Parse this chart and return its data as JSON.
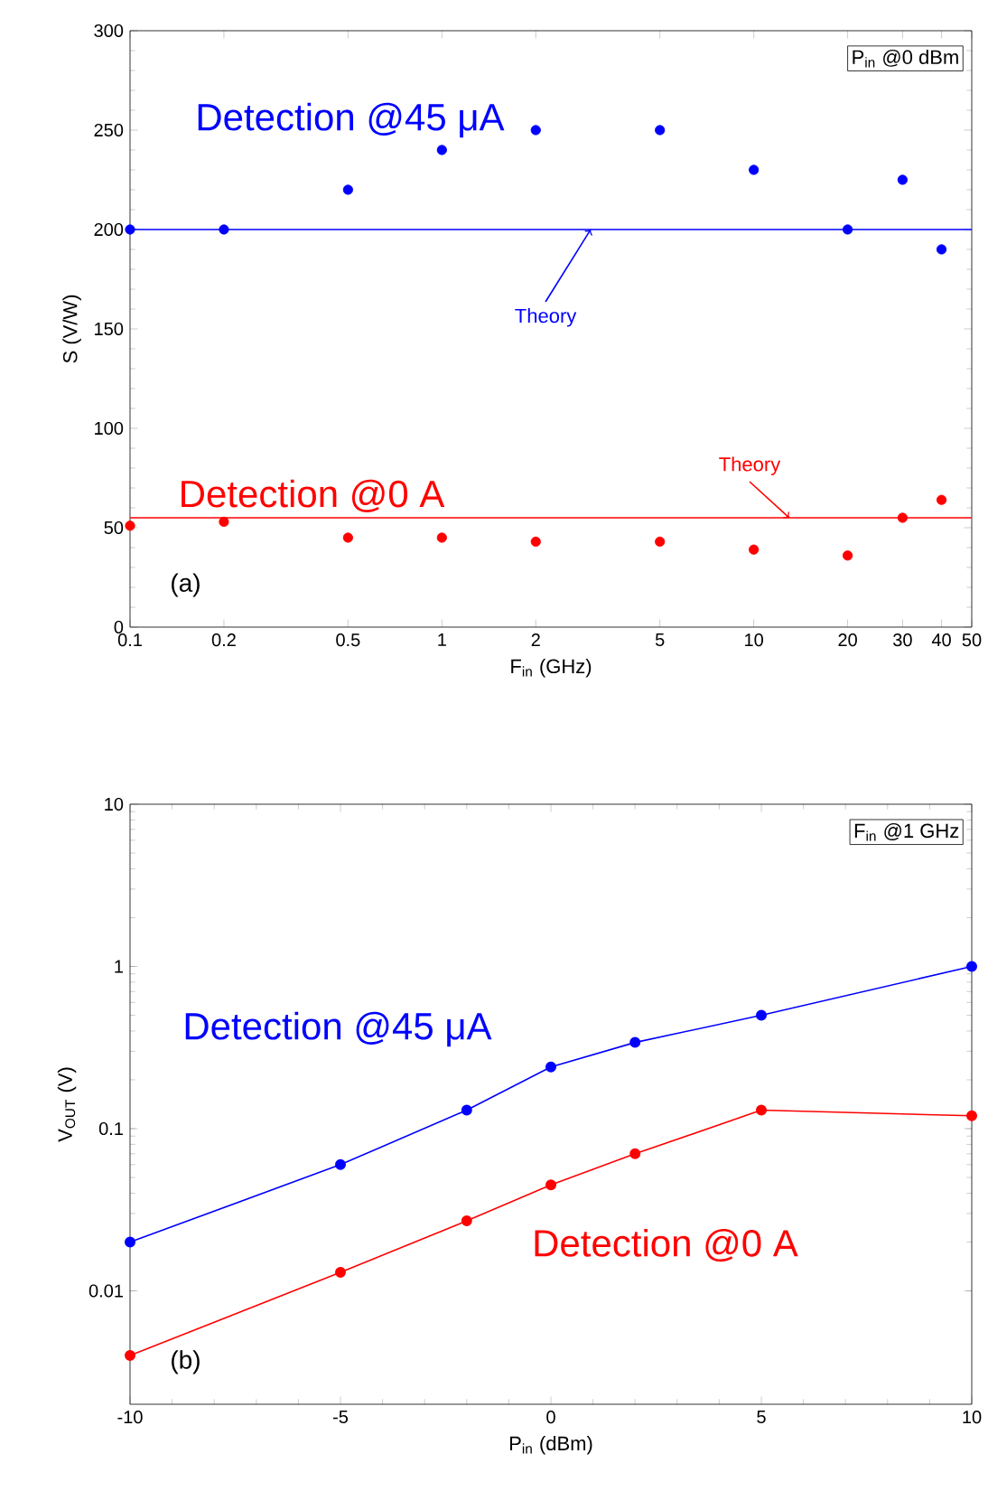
{
  "chart_data": [
    {
      "type": "scatter",
      "xlabel": "F$_{in}$ (GHz)",
      "ylabel": "S (V/W)",
      "log": "x",
      "marker": "circle",
      "grid": false,
      "legend": false,
      "xlim": [
        0.1,
        50
      ],
      "ylim": [
        0,
        300
      ],
      "xticks": [
        0.1,
        0.2,
        0.5,
        1,
        2,
        5,
        10,
        20,
        30,
        40,
        50
      ],
      "yticks": [
        0,
        50,
        100,
        150,
        200,
        250,
        300
      ],
      "annotations": [
        "(a)",
        "P$_{in}$ @0 dBm",
        {
          "text": "Theory",
          "x": 3,
          "y": 200
        },
        {
          "text": "Theory",
          "x": 13,
          "y": 55
        }
      ],
      "series": [
        {
          "name": "Detection @45 μA",
          "color": "#0000ff",
          "x": [
            0.1,
            0.2,
            0.5,
            1,
            2,
            5,
            10,
            20,
            30,
            40
          ],
          "values": [
            200,
            200,
            220,
            240,
            250,
            250,
            230,
            200,
            225,
            190
          ]
        },
        {
          "name": "Detection @0 A",
          "color": "#ff0000",
          "x": [
            0.1,
            0.2,
            0.5,
            1,
            2,
            5,
            10,
            20,
            30,
            40
          ],
          "values": [
            51,
            53,
            45,
            45,
            43,
            43,
            39,
            36,
            55,
            64
          ]
        },
        {
          "type": "line",
          "marker": "none",
          "color": "#0000ff",
          "x": [
            0.1,
            50
          ],
          "values": [
            200,
            200
          ]
        },
        {
          "type": "line",
          "marker": "none",
          "color": "#ff0000",
          "x": [
            0.1,
            50
          ],
          "values": [
            55,
            55
          ]
        }
      ]
    },
    {
      "type": "line",
      "xlabel": "P$_{in}$ (dBm)",
      "ylabel": "V$_{OUT}$ (V)",
      "log": "y",
      "marker": "circle",
      "grid": false,
      "legend": false,
      "xlim": [
        -10,
        10
      ],
      "ylim": [
        0.002,
        10
      ],
      "xticks": [
        -10,
        -5,
        0,
        5,
        10
      ],
      "yticks": [
        0.01,
        0.1,
        1,
        10
      ],
      "annotations": [
        "(b)",
        "F$_{in}$ @1 GHz"
      ],
      "series": [
        {
          "name": "Detection @45 μA",
          "color": "#0000ff",
          "x": [
            -10,
            -5,
            -2,
            0,
            2,
            5,
            10
          ],
          "values": [
            0.02,
            0.06,
            0.13,
            0.24,
            0.34,
            0.5,
            1.0
          ]
        },
        {
          "name": "Detection @0 A",
          "color": "#ff0000",
          "x": [
            -10,
            -5,
            -2,
            0,
            2,
            5,
            10
          ],
          "values": [
            0.004,
            0.013,
            0.027,
            0.045,
            0.07,
            0.13,
            0.12
          ]
        }
      ]
    }
  ]
}
